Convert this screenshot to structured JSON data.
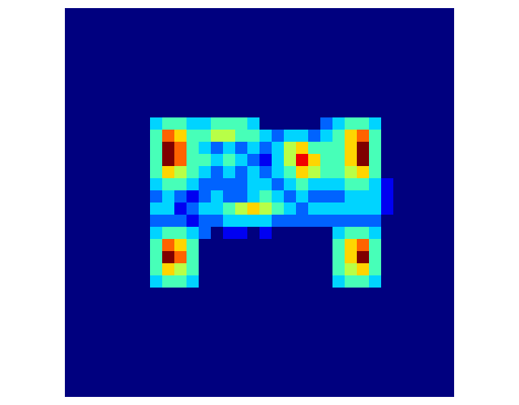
{
  "chart_data": {
    "type": "heatmap",
    "color": "jet",
    "tick_labels": false,
    "cells": [
      [
        0,
        0,
        0,
        0,
        0,
        0,
        0,
        0,
        0,
        0,
        0,
        0,
        0,
        0,
        0,
        0,
        0,
        0,
        0,
        0,
        0,
        0,
        0,
        0,
        0,
        0,
        0,
        0,
        0,
        0,
        0,
        0
      ],
      [
        0,
        0,
        0,
        0,
        0,
        0,
        0,
        0,
        0,
        0,
        0,
        0,
        0,
        0,
        0,
        0,
        0,
        0,
        0,
        0,
        0,
        0,
        0,
        0,
        0,
        0,
        0,
        0,
        0,
        0,
        0,
        0
      ],
      [
        0,
        0,
        0,
        0,
        0,
        0,
        0,
        0,
        0,
        0,
        0,
        0,
        0,
        0,
        0,
        0,
        0,
        0,
        0,
        0,
        0,
        0,
        0,
        0,
        0,
        0,
        0,
        0,
        0,
        0,
        0,
        0
      ],
      [
        0,
        0,
        0,
        0,
        0,
        0,
        0,
        0,
        0,
        0,
        0,
        0,
        0,
        0,
        0,
        0,
        0,
        0,
        0,
        0,
        0,
        0,
        0,
        0,
        0,
        0,
        0,
        0,
        0,
        0,
        0,
        0
      ],
      [
        0,
        0,
        0,
        0,
        0,
        0,
        0,
        0,
        0,
        0,
        0,
        0,
        0,
        0,
        0,
        0,
        0,
        0,
        0,
        0,
        0,
        0,
        0,
        0,
        0,
        0,
        0,
        0,
        0,
        0,
        0,
        0
      ],
      [
        0,
        0,
        0,
        0,
        0,
        0,
        0,
        0,
        0,
        0,
        0,
        0,
        0,
        0,
        0,
        0,
        0,
        0,
        0,
        0,
        0,
        0,
        0,
        0,
        0,
        0,
        0,
        0,
        0,
        0,
        0,
        0
      ],
      [
        0,
        0,
        0,
        0,
        0,
        0,
        0,
        0,
        0,
        0,
        0,
        0,
        0,
        0,
        0,
        0,
        0,
        0,
        0,
        0,
        0,
        0,
        0,
        0,
        0,
        0,
        0,
        0,
        0,
        0,
        0,
        0
      ],
      [
        0,
        0,
        0,
        0,
        0,
        0,
        0,
        0,
        0,
        0,
        0,
        0,
        0,
        0,
        0,
        0,
        0,
        0,
        0,
        0,
        0,
        0,
        0,
        0,
        0,
        0,
        0,
        0,
        0,
        0,
        0,
        0
      ],
      [
        0,
        0,
        0,
        0,
        0,
        0,
        0,
        0,
        0,
        0,
        0,
        0,
        0,
        0,
        0,
        0,
        0,
        0,
        0,
        0,
        0,
        0,
        0,
        0,
        0,
        0,
        0,
        0,
        0,
        0,
        0,
        0
      ],
      [
        0,
        0,
        0,
        0,
        0,
        0,
        0,
        0.3,
        0.4,
        0.4,
        0.3,
        0.3,
        0.4,
        0.4,
        0.4,
        0.3,
        0,
        0,
        0,
        0,
        0,
        0.2,
        0.3,
        0.4,
        0.4,
        0.3,
        0,
        0,
        0,
        0,
        0,
        0
      ],
      [
        0,
        0,
        0,
        0,
        0,
        0,
        0,
        0.4,
        0.7,
        0.6,
        0.4,
        0.4,
        0.5,
        0.5,
        0.4,
        0.4,
        0.3,
        0.2,
        0.3,
        0.3,
        0.2,
        0.3,
        0.4,
        0.6,
        0.7,
        0.4,
        0,
        0,
        0,
        0,
        0,
        0
      ],
      [
        0,
        0,
        0,
        0,
        0,
        0,
        0,
        0.4,
        0.9,
        0.7,
        0.4,
        0.3,
        0.2,
        0.3,
        0.2,
        0.3,
        0.2,
        0.3,
        0.5,
        0.6,
        0.4,
        0.4,
        0.4,
        0.6,
        0.9,
        0.4,
        0,
        0,
        0,
        0,
        0,
        0
      ],
      [
        0,
        0,
        0,
        0,
        0,
        0,
        0,
        0.4,
        0.9,
        0.7,
        0.4,
        0.4,
        0.3,
        0.4,
        0.3,
        0.2,
        0.1,
        0.3,
        0.5,
        0.8,
        0.6,
        0.4,
        0.4,
        0.6,
        0.9,
        0.4,
        0,
        0,
        0,
        0,
        0,
        0
      ],
      [
        0,
        0,
        0,
        0,
        0,
        0,
        0,
        0.4,
        0.6,
        0.5,
        0.4,
        0.3,
        0.2,
        0.3,
        0.2,
        0.3,
        0.2,
        0.3,
        0.4,
        0.6,
        0.5,
        0.4,
        0.4,
        0.5,
        0.6,
        0.4,
        0,
        0,
        0,
        0,
        0,
        0
      ],
      [
        0,
        0,
        0,
        0,
        0,
        0,
        0,
        0.3,
        0.4,
        0.4,
        0.3,
        0.2,
        0.2,
        0.2,
        0.2,
        0.3,
        0.3,
        0.2,
        0.3,
        0.4,
        0.3,
        0.3,
        0.3,
        0.4,
        0.4,
        0.3,
        0.1,
        0,
        0,
        0,
        0,
        0
      ],
      [
        0,
        0,
        0,
        0,
        0,
        0,
        0,
        0.2,
        0.3,
        0.2,
        0.1,
        0.2,
        0.3,
        0.2,
        0.2,
        0.3,
        0.4,
        0.3,
        0.2,
        0.3,
        0.2,
        0.2,
        0.2,
        0.3,
        0.3,
        0.3,
        0.1,
        0,
        0,
        0,
        0,
        0
      ],
      [
        0,
        0,
        0,
        0,
        0,
        0,
        0,
        0.3,
        0.3,
        0.1,
        0.2,
        0.3,
        0.3,
        0.4,
        0.5,
        0.6,
        0.5,
        0.4,
        0.3,
        0.2,
        0.3,
        0.3,
        0.3,
        0.3,
        0.3,
        0.3,
        0.1,
        0,
        0,
        0,
        0,
        0
      ],
      [
        0,
        0,
        0,
        0,
        0,
        0,
        0,
        0.2,
        0.2,
        0.2,
        0.1,
        0.2,
        0.2,
        0.3,
        0.3,
        0.3,
        0.3,
        0.2,
        0.2,
        0.2,
        0.2,
        0.2,
        0.2,
        0.2,
        0.2,
        0.2,
        0,
        0,
        0,
        0,
        0,
        0
      ],
      [
        0,
        0,
        0,
        0,
        0,
        0,
        0,
        0.3,
        0.4,
        0.4,
        0.3,
        0.2,
        0,
        0.1,
        0.1,
        0,
        0.1,
        0,
        0,
        0,
        0,
        0,
        0.3,
        0.4,
        0.4,
        0.3,
        0,
        0,
        0,
        0,
        0,
        0
      ],
      [
        0,
        0,
        0,
        0,
        0,
        0,
        0,
        0.4,
        0.7,
        0.6,
        0.4,
        0,
        0,
        0,
        0,
        0,
        0,
        0,
        0,
        0,
        0,
        0,
        0.4,
        0.6,
        0.7,
        0.4,
        0,
        0,
        0,
        0,
        0,
        0
      ],
      [
        0,
        0,
        0,
        0,
        0,
        0,
        0,
        0.4,
        0.9,
        0.7,
        0.4,
        0,
        0,
        0,
        0,
        0,
        0,
        0,
        0,
        0,
        0,
        0,
        0.4,
        0.6,
        0.9,
        0.4,
        0,
        0,
        0,
        0,
        0,
        0
      ],
      [
        0,
        0,
        0,
        0,
        0,
        0,
        0,
        0.4,
        0.6,
        0.5,
        0.4,
        0,
        0,
        0,
        0,
        0,
        0,
        0,
        0,
        0,
        0,
        0,
        0.4,
        0.5,
        0.6,
        0.4,
        0,
        0,
        0,
        0,
        0,
        0
      ],
      [
        0,
        0,
        0,
        0,
        0,
        0,
        0,
        0.3,
        0.4,
        0.4,
        0.3,
        0,
        0,
        0,
        0,
        0,
        0,
        0,
        0,
        0,
        0,
        0,
        0.3,
        0.4,
        0.4,
        0.3,
        0,
        0,
        0,
        0,
        0,
        0
      ],
      [
        0,
        0,
        0,
        0,
        0,
        0,
        0,
        0,
        0,
        0,
        0,
        0,
        0,
        0,
        0,
        0,
        0,
        0,
        0,
        0,
        0,
        0,
        0,
        0,
        0,
        0,
        0,
        0,
        0,
        0,
        0,
        0
      ],
      [
        0,
        0,
        0,
        0,
        0,
        0,
        0,
        0,
        0,
        0,
        0,
        0,
        0,
        0,
        0,
        0,
        0,
        0,
        0,
        0,
        0,
        0,
        0,
        0,
        0,
        0,
        0,
        0,
        0,
        0,
        0,
        0
      ],
      [
        0,
        0,
        0,
        0,
        0,
        0,
        0,
        0,
        0,
        0,
        0,
        0,
        0,
        0,
        0,
        0,
        0,
        0,
        0,
        0,
        0,
        0,
        0,
        0,
        0,
        0,
        0,
        0,
        0,
        0,
        0,
        0
      ],
      [
        0,
        0,
        0,
        0,
        0,
        0,
        0,
        0,
        0,
        0,
        0,
        0,
        0,
        0,
        0,
        0,
        0,
        0,
        0,
        0,
        0,
        0,
        0,
        0,
        0,
        0,
        0,
        0,
        0,
        0,
        0,
        0
      ],
      [
        0,
        0,
        0,
        0,
        0,
        0,
        0,
        0,
        0,
        0,
        0,
        0,
        0,
        0,
        0,
        0,
        0,
        0,
        0,
        0,
        0,
        0,
        0,
        0,
        0,
        0,
        0,
        0,
        0,
        0,
        0,
        0
      ],
      [
        0,
        0,
        0,
        0,
        0,
        0,
        0,
        0,
        0,
        0,
        0,
        0,
        0,
        0,
        0,
        0,
        0,
        0,
        0,
        0,
        0,
        0,
        0,
        0,
        0,
        0,
        0,
        0,
        0,
        0,
        0,
        0
      ],
      [
        0,
        0,
        0,
        0,
        0,
        0,
        0,
        0,
        0,
        0,
        0,
        0,
        0,
        0,
        0,
        0,
        0,
        0,
        0,
        0,
        0,
        0,
        0,
        0,
        0,
        0,
        0,
        0,
        0,
        0,
        0,
        0
      ],
      [
        0,
        0,
        0,
        0,
        0,
        0,
        0,
        0,
        0,
        0,
        0,
        0,
        0,
        0,
        0,
        0,
        0,
        0,
        0,
        0,
        0,
        0,
        0,
        0,
        0,
        0,
        0,
        0,
        0,
        0,
        0,
        0
      ],
      [
        0,
        0,
        0,
        0,
        0,
        0,
        0,
        0,
        0,
        0,
        0,
        0,
        0,
        0,
        0,
        0,
        0,
        0,
        0,
        0,
        0,
        0,
        0,
        0,
        0,
        0,
        0,
        0,
        0,
        0,
        0,
        0
      ]
    ]
  }
}
